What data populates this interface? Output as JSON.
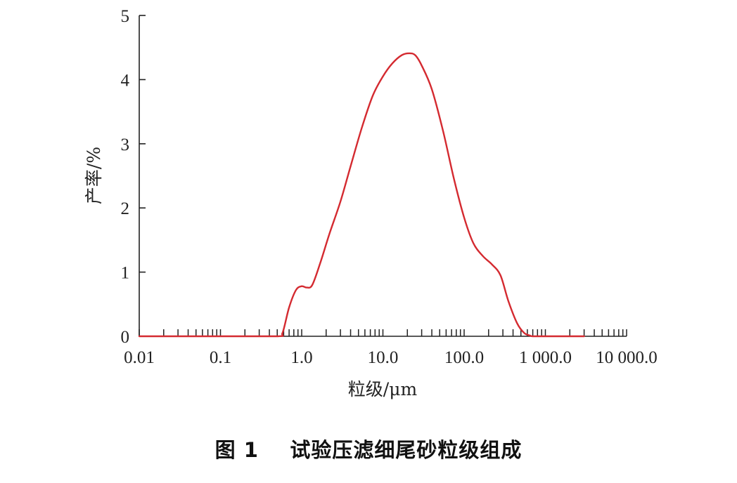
{
  "caption": {
    "label": "图 1",
    "text": "试验压滤细尾砂粒级组成"
  },
  "colors": {
    "series": "#d42a30",
    "axis": "#222222"
  },
  "chart_data": {
    "type": "line",
    "xscale": "log",
    "xlabel": "粒级/μm",
    "ylabel": "产率/%",
    "xlim": [
      0.01,
      10000
    ],
    "ylim": [
      0,
      5
    ],
    "x_ticks": [
      {
        "value": 0.01,
        "label": "0.01"
      },
      {
        "value": 0.1,
        "label": "0.1"
      },
      {
        "value": 1,
        "label": "1.0"
      },
      {
        "value": 10,
        "label": "10.0"
      },
      {
        "value": 100,
        "label": "100.0"
      },
      {
        "value": 1000,
        "label": "1 000.0"
      },
      {
        "value": 10000,
        "label": "10 000.0"
      }
    ],
    "y_ticks": [
      {
        "value": 0,
        "label": "0"
      },
      {
        "value": 1,
        "label": "1"
      },
      {
        "value": 2,
        "label": "2"
      },
      {
        "value": 3,
        "label": "3"
      },
      {
        "value": 4,
        "label": "4"
      },
      {
        "value": 5,
        "label": "5"
      }
    ],
    "series": [
      {
        "x": [
          0.01,
          0.1,
          0.5,
          0.58,
          0.7,
          0.85,
          1.0,
          1.15,
          1.35,
          1.7,
          2.2,
          3.0,
          4.0,
          5.5,
          7.5,
          10,
          13,
          17,
          21,
          25,
          30,
          40,
          55,
          75,
          100,
          130,
          170,
          220,
          280,
          350,
          450,
          550,
          650,
          700,
          1000,
          3000
        ],
        "y": [
          0,
          0,
          0,
          0.05,
          0.45,
          0.72,
          0.78,
          0.76,
          0.8,
          1.15,
          1.6,
          2.1,
          2.65,
          3.25,
          3.75,
          4.05,
          4.25,
          4.38,
          4.41,
          4.38,
          4.22,
          3.85,
          3.2,
          2.45,
          1.85,
          1.45,
          1.25,
          1.12,
          0.95,
          0.55,
          0.2,
          0.05,
          0.01,
          0,
          0,
          0
        ]
      }
    ]
  }
}
